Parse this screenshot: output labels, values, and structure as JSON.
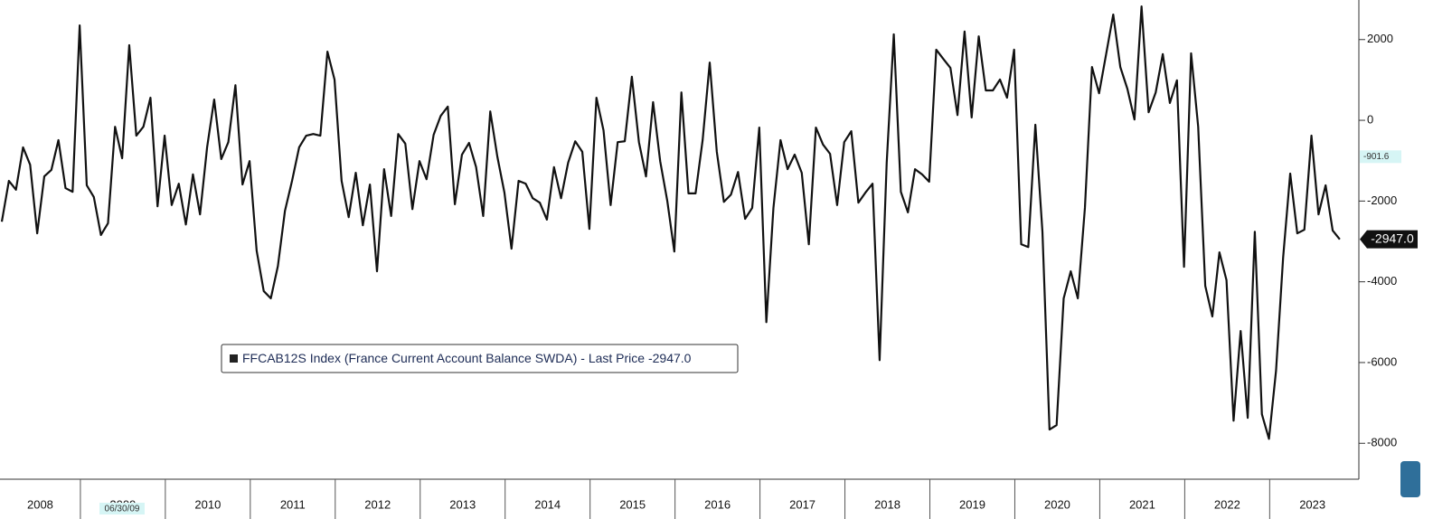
{
  "chart_data": {
    "type": "line",
    "year_labels": [
      "2008",
      "2009",
      "2010",
      "2011",
      "2012",
      "2013",
      "2014",
      "2015",
      "2016",
      "2017",
      "2018",
      "2019",
      "2020",
      "2021",
      "2022",
      "2023"
    ],
    "series": [
      {
        "name": "FFCAB12S Index (France Current Account Balance SWDA) - Last Price",
        "last_price_label": "-2947.0",
        "color": "#111111",
        "values": [
          -2510,
          -1500,
          -1720,
          -670,
          -1100,
          -2800,
          -1390,
          -1230,
          -490,
          -1680,
          -1770,
          2350,
          -1610,
          -1900,
          -2840,
          -2550,
          -160,
          -940,
          1860,
          -380,
          -160,
          560,
          -2130,
          -380,
          -2100,
          -1570,
          -2580,
          -1340,
          -2330,
          -670,
          515,
          -960,
          -540,
          870,
          -1590,
          -1010,
          -3230,
          -4230,
          -4410,
          -3610,
          -2240,
          -1500,
          -670,
          -380,
          -340,
          -380,
          1700,
          1010,
          -1500,
          -2400,
          -1300,
          -2600,
          -1590,
          -3740,
          -1210,
          -2370,
          -340,
          -580,
          -2200,
          -1010,
          -1460,
          -360,
          110,
          340,
          -2080,
          -850,
          -560,
          -1160,
          -2370,
          220,
          -900,
          -1790,
          -3180,
          -1500,
          -1570,
          -1930,
          -2040,
          -2460,
          -1160,
          -1930,
          -1050,
          -520,
          -780,
          -2690,
          560,
          -250,
          -2100,
          -540,
          -520,
          1080,
          -540,
          -1390,
          450,
          -1010,
          -1990,
          -3250,
          690,
          -1810,
          -1810,
          -490,
          1430,
          -780,
          -2020,
          -1840,
          -1280,
          -2440,
          -2170,
          -180,
          -5000,
          -2170,
          -490,
          -1210,
          -850,
          -1300,
          -3070,
          -180,
          -600,
          -830,
          -2100,
          -540,
          -270,
          -2040,
          -1790,
          -1570,
          -5940,
          -1050,
          2130,
          -1770,
          -2280,
          -1210,
          -1340,
          -1520,
          1750,
          1520,
          1300,
          130,
          2200,
          70,
          2080,
          740,
          740,
          1010,
          560,
          1750,
          -3070,
          -3140,
          -110,
          -2760,
          -7660,
          -7550,
          -4410,
          -3740,
          -4410,
          -2170,
          1320,
          670,
          1640,
          2620,
          1320,
          780,
          20,
          2820,
          200,
          690,
          1640,
          430,
          990,
          -3630,
          1660,
          -160,
          -4100,
          -4860,
          -3270,
          -3960,
          -7440,
          -5220,
          -7370,
          -2760,
          -7280,
          -7890,
          -6200,
          -3400,
          -1320,
          -2800,
          -2710,
          -380,
          -2330,
          -1610,
          -2730,
          -2947
        ]
      }
    ],
    "crosshair": {
      "value": -901.6,
      "label": "-901.6",
      "date": "06/30/09"
    },
    "ylim": [
      -8890,
      2980
    ],
    "yticks": [
      2000,
      0,
      -2000,
      -4000,
      -6000,
      -8000
    ]
  }
}
